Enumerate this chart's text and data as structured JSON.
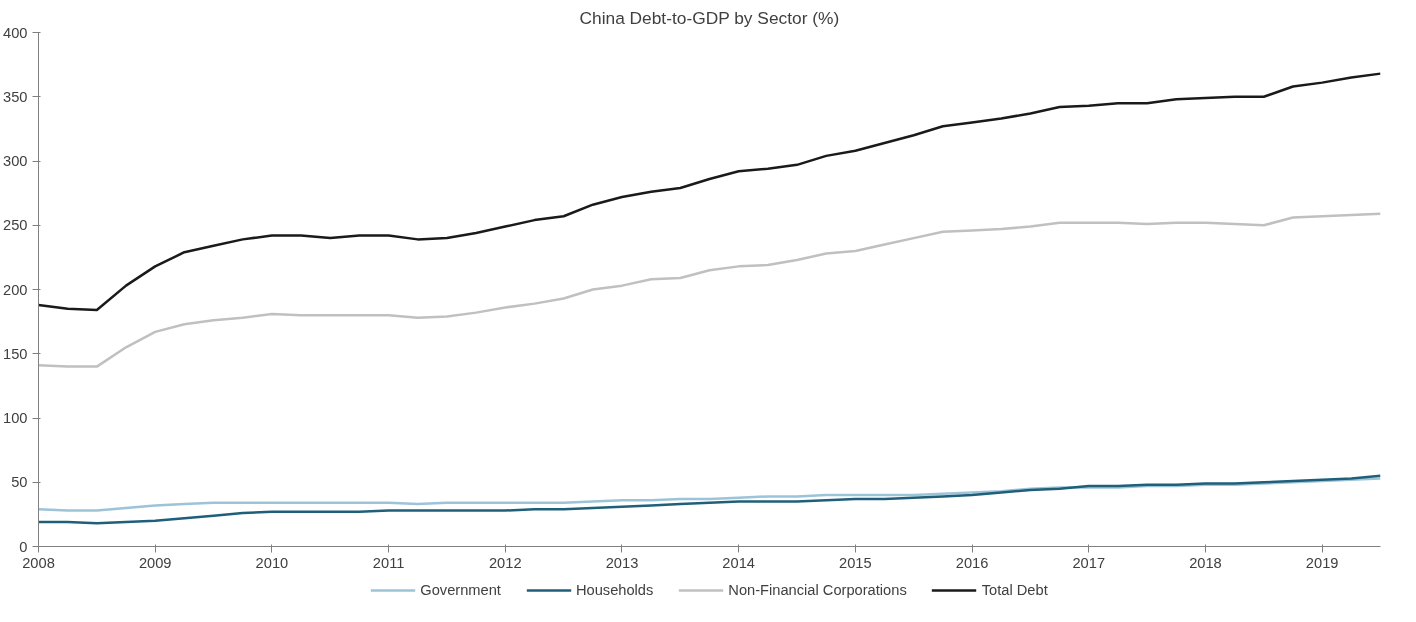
{
  "chart_data": {
    "type": "line",
    "title": "China Debt-to-GDP by Sector (%)",
    "x": [
      2008,
      2008.25,
      2008.5,
      2008.75,
      2009,
      2009.25,
      2009.5,
      2009.75,
      2010,
      2010.25,
      2010.5,
      2010.75,
      2011,
      2011.25,
      2011.5,
      2011.75,
      2012,
      2012.25,
      2012.5,
      2012.75,
      2013,
      2013.25,
      2013.5,
      2013.75,
      2014,
      2014.25,
      2014.5,
      2014.75,
      2015,
      2015.25,
      2015.5,
      2015.75,
      2016,
      2016.25,
      2016.5,
      2016.75,
      2017,
      2017.25,
      2017.5,
      2017.75,
      2018,
      2018.25,
      2018.5,
      2018.75,
      2019,
      2019.25,
      2019.5
    ],
    "series": [
      {
        "name": "Government",
        "color": "#9dc3d9",
        "values": [
          29,
          28,
          28,
          30,
          32,
          33,
          34,
          34,
          34,
          34,
          34,
          34,
          34,
          33,
          34,
          34,
          34,
          34,
          34,
          35,
          36,
          36,
          37,
          37,
          38,
          39,
          39,
          40,
          40,
          40,
          40,
          41,
          42,
          43,
          45,
          46,
          46,
          46,
          47,
          47,
          48,
          48,
          49,
          50,
          51,
          52,
          53
        ]
      },
      {
        "name": "Households",
        "color": "#1f5f7a",
        "values": [
          19,
          19,
          18,
          19,
          20,
          22,
          24,
          26,
          27,
          27,
          27,
          27,
          28,
          28,
          28,
          28,
          28,
          29,
          29,
          30,
          31,
          32,
          33,
          34,
          35,
          35,
          35,
          36,
          37,
          37,
          38,
          39,
          40,
          42,
          44,
          45,
          47,
          47,
          48,
          48,
          49,
          49,
          50,
          51,
          52,
          53,
          55
        ]
      },
      {
        "name": "Non-Financial Corporations",
        "color": "#c0c0c0",
        "values": [
          141,
          140,
          140,
          155,
          167,
          173,
          176,
          178,
          181,
          180,
          180,
          180,
          180,
          178,
          179,
          182,
          186,
          189,
          193,
          200,
          203,
          208,
          209,
          215,
          218,
          219,
          223,
          228,
          230,
          235,
          240,
          245,
          246,
          247,
          249,
          252,
          252,
          252,
          251,
          252,
          252,
          251,
          250,
          256,
          257,
          258,
          259
        ]
      },
      {
        "name": "Total Debt",
        "color": "#1a1a1a",
        "values": [
          188,
          185,
          184,
          203,
          218,
          229,
          234,
          239,
          242,
          242,
          240,
          242,
          242,
          239,
          240,
          244,
          249,
          254,
          257,
          266,
          272,
          276,
          279,
          286,
          292,
          294,
          297,
          304,
          308,
          314,
          320,
          327,
          330,
          333,
          337,
          342,
          343,
          345,
          345,
          348,
          349,
          350,
          350,
          358,
          361,
          365,
          368
        ]
      }
    ],
    "xlim": [
      2008,
      2019.5
    ],
    "xticks": [
      2008,
      2009,
      2010,
      2011,
      2012,
      2013,
      2014,
      2015,
      2016,
      2017,
      2018,
      2019
    ],
    "ylim": [
      0,
      400
    ],
    "yticks": [
      0,
      50,
      100,
      150,
      200,
      250,
      300,
      350,
      400
    ],
    "grid": false,
    "legend": "bottom",
    "marker": "none",
    "line_style": "solid"
  }
}
